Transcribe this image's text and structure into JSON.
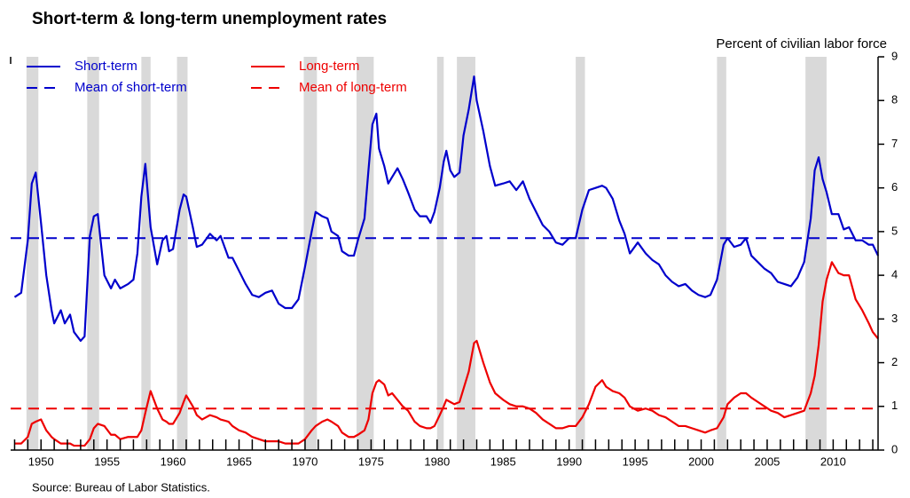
{
  "chart_data": {
    "type": "line",
    "title": "Short-term & long-term unemployment rates",
    "y_axis_label": "Percent of civilian labor force",
    "source": "Source:  Bureau of Labor Statistics.",
    "xlim": [
      1947.7,
      2013.4
    ],
    "ylim": [
      0,
      9
    ],
    "xticks": [
      1950,
      1955,
      1960,
      1965,
      1970,
      1975,
      1980,
      1985,
      1990,
      1995,
      2000,
      2005,
      2010
    ],
    "xminorticks": [
      1948,
      1949,
      1950,
      1951,
      1952,
      1953,
      1954,
      1955,
      1956,
      1957,
      1958,
      1959,
      1960,
      1961,
      1962,
      1963,
      1964,
      1965,
      1966,
      1967,
      1968,
      1969,
      1970,
      1971,
      1972,
      1973,
      1974,
      1975,
      1976,
      1977,
      1978,
      1979,
      1980,
      1981,
      1982,
      1983,
      1984,
      1985,
      1986,
      1987,
      1988,
      1989,
      1990,
      1991,
      1992,
      1993,
      1994,
      1995,
      1996,
      1997,
      1998,
      1999,
      2000,
      2001,
      2002,
      2003,
      2004,
      2005,
      2006,
      2007,
      2008,
      2009,
      2010,
      2011,
      2012,
      2013
    ],
    "yticks": [
      0,
      1,
      2,
      3,
      4,
      5,
      6,
      7,
      8,
      9
    ],
    "recession_color": "#d9d9d9",
    "recessions": [
      [
        1948.9,
        1949.8
      ],
      [
        1953.5,
        1954.4
      ],
      [
        1957.6,
        1958.3
      ],
      [
        1960.3,
        1961.1
      ],
      [
        1969.9,
        1970.9
      ],
      [
        1973.9,
        1975.2
      ],
      [
        1980.0,
        1980.5
      ],
      [
        1981.5,
        1982.9
      ],
      [
        1990.5,
        1991.2
      ],
      [
        2001.2,
        2001.9
      ],
      [
        2007.9,
        2009.5
      ]
    ],
    "x": [
      1948.0,
      1948.5,
      1949.0,
      1949.3,
      1949.6,
      1950.0,
      1950.4,
      1950.8,
      1951.0,
      1951.5,
      1951.8,
      1952.2,
      1952.5,
      1953.0,
      1953.3,
      1953.7,
      1954.0,
      1954.3,
      1954.8,
      1955.3,
      1955.6,
      1956.0,
      1956.6,
      1957.0,
      1957.3,
      1957.6,
      1957.9,
      1958.3,
      1958.8,
      1959.2,
      1959.5,
      1959.7,
      1960.0,
      1960.5,
      1960.8,
      1961.0,
      1961.5,
      1961.8,
      1962.2,
      1962.8,
      1963.3,
      1963.6,
      1964.2,
      1964.5,
      1965.0,
      1965.5,
      1966.0,
      1966.5,
      1967.0,
      1967.5,
      1968.0,
      1968.5,
      1969.0,
      1969.5,
      1970.0,
      1970.5,
      1970.8,
      1971.3,
      1971.7,
      1972.0,
      1972.5,
      1972.8,
      1973.3,
      1973.7,
      1974.0,
      1974.5,
      1974.8,
      1975.1,
      1975.4,
      1975.6,
      1976.0,
      1976.3,
      1976.6,
      1977.0,
      1977.4,
      1977.8,
      1978.3,
      1978.7,
      1979.2,
      1979.5,
      1979.8,
      1980.2,
      1980.5,
      1980.7,
      1981.0,
      1981.3,
      1981.7,
      1982.0,
      1982.4,
      1982.8,
      1983.0,
      1983.5,
      1984.0,
      1984.4,
      1985.0,
      1985.5,
      1986.0,
      1986.5,
      1987.0,
      1987.5,
      1988.0,
      1988.5,
      1989.0,
      1989.5,
      1990.0,
      1990.5,
      1991.0,
      1991.5,
      1992.0,
      1992.5,
      1992.8,
      1993.3,
      1993.8,
      1994.2,
      1994.6,
      1995.2,
      1995.8,
      1996.3,
      1996.8,
      1997.3,
      1997.8,
      1998.3,
      1998.8,
      1999.3,
      1999.8,
      2000.3,
      2000.7,
      2001.2,
      2001.7,
      2002.0,
      2002.5,
      2003.0,
      2003.4,
      2003.8,
      2004.3,
      2004.8,
      2005.3,
      2005.8,
      2006.3,
      2006.8,
      2007.3,
      2007.8,
      2008.3,
      2008.6,
      2008.9,
      2009.2,
      2009.5,
      2009.9,
      2010.4,
      2010.8,
      2011.2,
      2011.7,
      2012.2,
      2012.7,
      2013.0,
      2013.4
    ],
    "series": [
      {
        "name": "Short-term",
        "color": "#0000cc",
        "values": [
          3.5,
          3.6,
          4.8,
          6.1,
          6.35,
          5.2,
          4.0,
          3.2,
          2.9,
          3.2,
          2.9,
          3.1,
          2.7,
          2.5,
          2.6,
          4.9,
          5.35,
          5.4,
          4.0,
          3.7,
          3.9,
          3.7,
          3.8,
          3.9,
          4.5,
          5.8,
          6.55,
          5.1,
          4.25,
          4.8,
          4.9,
          4.55,
          4.6,
          5.5,
          5.85,
          5.8,
          5.1,
          4.65,
          4.7,
          4.95,
          4.8,
          4.9,
          4.4,
          4.4,
          4.1,
          3.8,
          3.55,
          3.5,
          3.6,
          3.65,
          3.35,
          3.25,
          3.25,
          3.45,
          4.2,
          5.0,
          5.45,
          5.35,
          5.3,
          5.0,
          4.9,
          4.55,
          4.45,
          4.45,
          4.8,
          5.3,
          6.4,
          7.45,
          7.7,
          6.9,
          6.5,
          6.1,
          6.25,
          6.45,
          6.2,
          5.9,
          5.5,
          5.35,
          5.35,
          5.2,
          5.45,
          6.0,
          6.6,
          6.85,
          6.4,
          6.25,
          6.35,
          7.2,
          7.8,
          8.55,
          8.0,
          7.3,
          6.5,
          6.05,
          6.1,
          6.15,
          5.95,
          6.15,
          5.75,
          5.45,
          5.15,
          5.0,
          4.75,
          4.7,
          4.85,
          4.85,
          5.5,
          5.95,
          6.0,
          6.05,
          6.0,
          5.75,
          5.25,
          4.95,
          4.5,
          4.75,
          4.5,
          4.35,
          4.25,
          4.0,
          3.85,
          3.75,
          3.8,
          3.65,
          3.55,
          3.5,
          3.55,
          3.9,
          4.7,
          4.85,
          4.65,
          4.7,
          4.85,
          4.45,
          4.3,
          4.15,
          4.05,
          3.85,
          3.8,
          3.75,
          3.95,
          4.3,
          5.3,
          6.4,
          6.7,
          6.2,
          5.9,
          5.4,
          5.4,
          5.05,
          5.1,
          4.8,
          4.8,
          4.7,
          4.7,
          4.45
        ]
      },
      {
        "name": "Long-term",
        "color": "#ee0000",
        "values": [
          0.15,
          0.15,
          0.3,
          0.6,
          0.65,
          0.7,
          0.45,
          0.3,
          0.25,
          0.15,
          0.15,
          0.15,
          0.1,
          0.1,
          0.1,
          0.25,
          0.5,
          0.6,
          0.55,
          0.35,
          0.35,
          0.25,
          0.3,
          0.3,
          0.3,
          0.45,
          0.85,
          1.35,
          0.95,
          0.7,
          0.65,
          0.6,
          0.6,
          0.85,
          1.1,
          1.25,
          1.0,
          0.8,
          0.7,
          0.8,
          0.75,
          0.7,
          0.65,
          0.55,
          0.45,
          0.4,
          0.3,
          0.25,
          0.2,
          0.2,
          0.2,
          0.15,
          0.15,
          0.15,
          0.25,
          0.45,
          0.55,
          0.65,
          0.7,
          0.65,
          0.55,
          0.4,
          0.3,
          0.3,
          0.35,
          0.45,
          0.7,
          1.3,
          1.55,
          1.6,
          1.5,
          1.25,
          1.3,
          1.15,
          1.0,
          0.9,
          0.65,
          0.55,
          0.5,
          0.5,
          0.55,
          0.8,
          1.0,
          1.15,
          1.1,
          1.05,
          1.1,
          1.4,
          1.8,
          2.45,
          2.5,
          2.0,
          1.55,
          1.3,
          1.15,
          1.05,
          1.0,
          1.0,
          0.95,
          0.85,
          0.7,
          0.6,
          0.5,
          0.5,
          0.55,
          0.55,
          0.75,
          1.05,
          1.45,
          1.6,
          1.45,
          1.35,
          1.3,
          1.2,
          1.0,
          0.9,
          0.95,
          0.9,
          0.8,
          0.75,
          0.65,
          0.55,
          0.55,
          0.5,
          0.45,
          0.4,
          0.45,
          0.5,
          0.75,
          1.05,
          1.2,
          1.3,
          1.3,
          1.2,
          1.1,
          1.0,
          0.9,
          0.85,
          0.75,
          0.8,
          0.85,
          0.9,
          1.3,
          1.7,
          2.4,
          3.4,
          3.9,
          4.3,
          4.05,
          4.0,
          4.0,
          3.45,
          3.2,
          2.9,
          2.7,
          2.55
        ]
      }
    ],
    "reference_lines": [
      {
        "name": "Mean of short-term",
        "color": "#0000cc",
        "value": 4.85,
        "dashed": true
      },
      {
        "name": "Mean of long-term",
        "color": "#ee0000",
        "value": 0.95,
        "dashed": true
      }
    ]
  }
}
